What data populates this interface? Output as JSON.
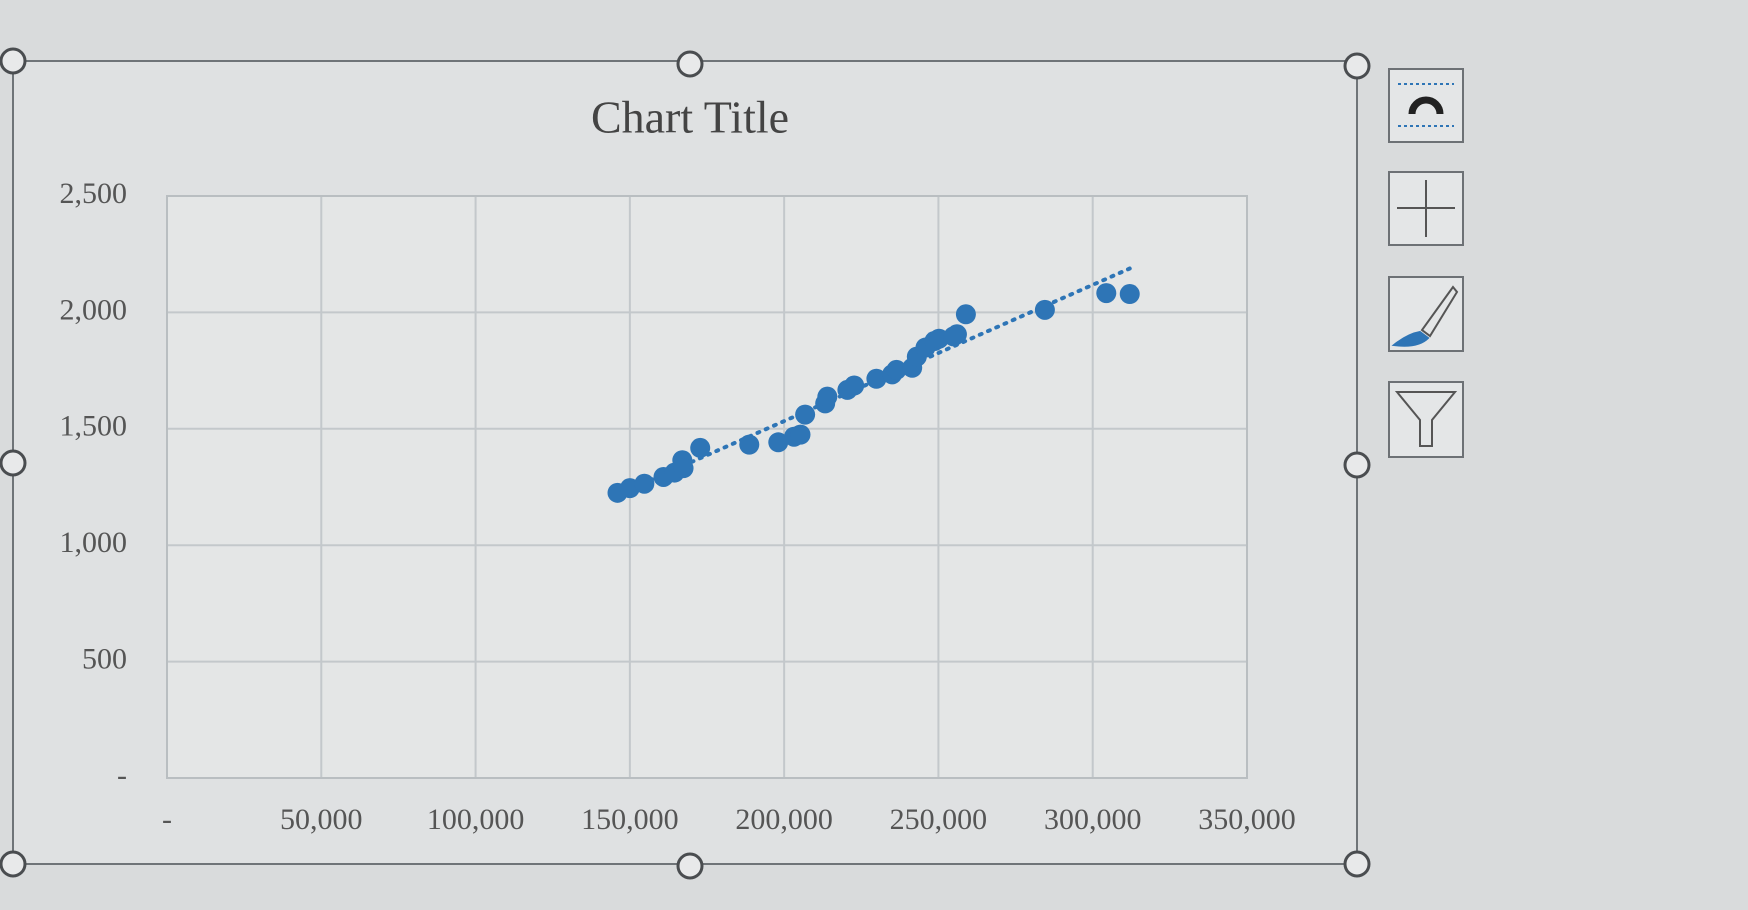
{
  "chart_data": {
    "type": "scatter",
    "title": "Chart Title",
    "series": [
      {
        "color": "#2e75b6",
        "x": [
          146000,
          150000,
          154700,
          160900,
          164500,
          167000,
          167400,
          172800,
          188700,
          198100,
          203200,
          205300,
          206800,
          213300,
          214000,
          220500,
          222700,
          229900,
          235000,
          236400,
          241500,
          243000,
          245800,
          248700,
          250200,
          254900,
          256000,
          258900,
          284500,
          304400,
          312000
        ],
        "values": [
          1225,
          1245,
          1264,
          1293,
          1312,
          1365,
          1331,
          1418,
          1432,
          1442,
          1466,
          1475,
          1561,
          1609,
          1638,
          1667,
          1686,
          1715,
          1734,
          1753,
          1762,
          1810,
          1849,
          1877,
          1887,
          1897,
          1906,
          1992,
          2011,
          2083,
          2079
        ]
      }
    ],
    "trendline": "linear",
    "xlim": [
      0,
      350000
    ],
    "xticks": [
      {
        "value": 0,
        "label": "-"
      },
      {
        "value": 50000,
        "label": "50,000"
      },
      {
        "value": 100000,
        "label": "100,000"
      },
      {
        "value": 150000,
        "label": "150,000"
      },
      {
        "value": 200000,
        "label": "200,000"
      },
      {
        "value": 250000,
        "label": "250,000"
      },
      {
        "value": 300000,
        "label": "300,000"
      },
      {
        "value": 350000,
        "label": "350,000"
      }
    ],
    "ylim": [
      0,
      2500
    ],
    "yticks": [
      {
        "value": 0,
        "label": "-"
      },
      500,
      {
        "value": 1000,
        "label": "1,000"
      },
      {
        "value": 1500,
        "label": "1,500"
      },
      {
        "value": 2000,
        "label": "2,000"
      },
      {
        "value": 2500,
        "label": "2,500"
      }
    ],
    "grid": true
  }
}
